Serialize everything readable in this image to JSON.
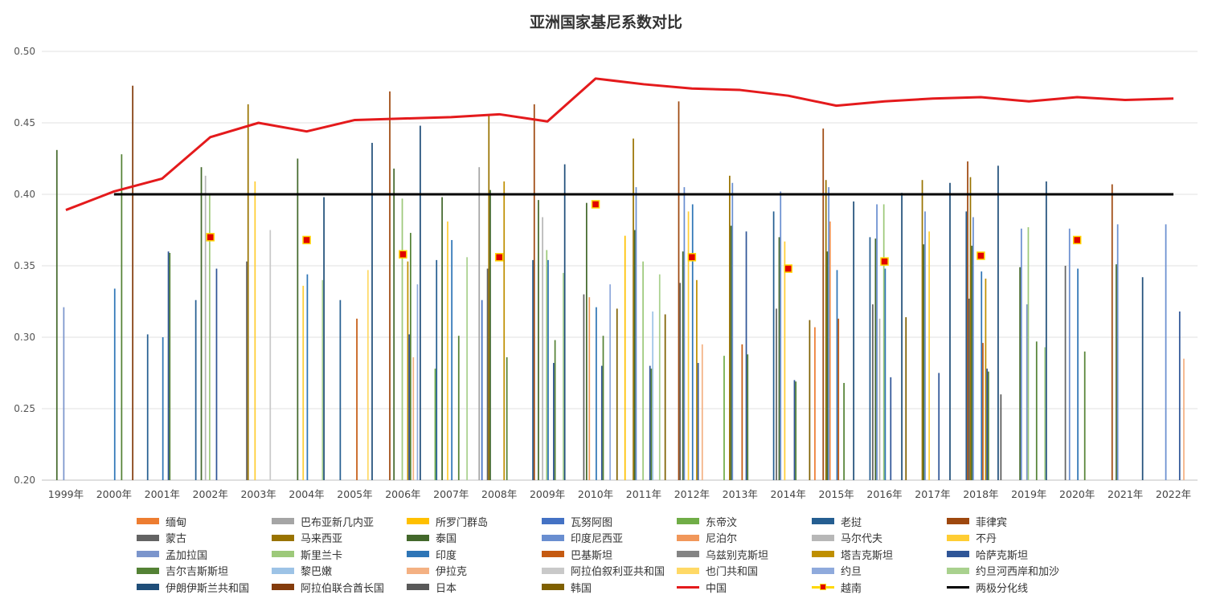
{
  "chart_data": {
    "type": "bar",
    "title": "亚洲国家基尼系数对比",
    "xlabel": "",
    "ylabel": "",
    "ylim": [
      0.2,
      0.5
    ],
    "yticks": [
      "0.20",
      "0.25",
      "0.30",
      "0.35",
      "0.40",
      "0.45",
      "0.50"
    ],
    "grid": true,
    "legend_position": "bottom",
    "categories": [
      "1999年",
      "2000年",
      "2001年",
      "2002年",
      "2003年",
      "2004年",
      "2005年",
      "2006年",
      "2007年",
      "2008年",
      "2009年",
      "2010年",
      "2011年",
      "2012年",
      "2013年",
      "2014年",
      "2015年",
      "2016年",
      "2017年",
      "2018年",
      "2019年",
      "2020年",
      "2021年",
      "2022年"
    ],
    "series": [
      {
        "name": "缅甸",
        "color": "#ed7d31",
        "values": [
          null,
          null,
          null,
          null,
          null,
          null,
          null,
          null,
          null,
          null,
          null,
          null,
          null,
          null,
          null,
          null,
          0.307,
          null,
          null,
          null,
          null,
          null,
          null,
          null
        ]
      },
      {
        "name": "巴布亚新几内亚",
        "color": "#a5a5a5",
        "values": [
          null,
          null,
          null,
          null,
          null,
          null,
          null,
          null,
          null,
          0.419,
          null,
          null,
          null,
          null,
          null,
          null,
          null,
          null,
          null,
          null,
          null,
          null,
          null,
          null
        ]
      },
      {
        "name": "所罗门群岛",
        "color": "#ffc000",
        "values": [
          null,
          null,
          null,
          null,
          null,
          null,
          null,
          null,
          null,
          null,
          null,
          null,
          0.371,
          null,
          null,
          null,
          null,
          null,
          null,
          null,
          null,
          null,
          null,
          null
        ]
      },
      {
        "name": "瓦努阿图",
        "color": "#4472c4",
        "values": [
          null,
          null,
          null,
          null,
          null,
          null,
          null,
          null,
          null,
          0.326,
          null,
          null,
          null,
          null,
          null,
          null,
          null,
          null,
          null,
          null,
          null,
          null,
          null,
          null
        ]
      },
      {
        "name": "东帝汶",
        "color": "#70ad47",
        "values": [
          null,
          null,
          null,
          null,
          null,
          null,
          null,
          null,
          0.278,
          null,
          null,
          null,
          null,
          null,
          0.287,
          null,
          null,
          null,
          null,
          null,
          null,
          null,
          null,
          null
        ]
      },
      {
        "name": "老挝",
        "color": "#255e91",
        "values": [
          null,
          null,
          0.302,
          0.326,
          null,
          null,
          0.326,
          null,
          0.354,
          null,
          0.354,
          null,
          null,
          null,
          null,
          0.388,
          null,
          0.37,
          null,
          0.388,
          null,
          null,
          null,
          null
        ]
      },
      {
        "name": "菲律宾",
        "color": "#9e480e",
        "values": [
          null,
          null,
          null,
          null,
          null,
          null,
          null,
          0.472,
          null,
          null,
          0.463,
          null,
          null,
          0.465,
          null,
          null,
          0.446,
          null,
          null,
          0.423,
          null,
          null,
          0.407,
          null
        ]
      },
      {
        "name": "蒙古",
        "color": "#636363",
        "values": [
          null,
          null,
          null,
          null,
          0.353,
          null,
          null,
          null,
          null,
          0.348,
          null,
          0.33,
          null,
          0.338,
          null,
          0.32,
          null,
          0.323,
          null,
          0.327,
          null,
          0.35,
          null,
          null
        ]
      },
      {
        "name": "马来西亚",
        "color": "#997300",
        "values": [
          null,
          null,
          null,
          null,
          0.463,
          null,
          null,
          null,
          null,
          0.455,
          null,
          null,
          0.439,
          null,
          0.413,
          null,
          0.41,
          null,
          0.41,
          0.412,
          null,
          null,
          null,
          null
        ]
      },
      {
        "name": "泰国",
        "color": "#43682b",
        "values": [
          0.431,
          null,
          null,
          0.419,
          null,
          0.425,
          null,
          0.418,
          0.398,
          0.403,
          0.396,
          0.394,
          0.375,
          0.36,
          0.378,
          0.37,
          0.36,
          0.369,
          0.365,
          0.364,
          0.349,
          null,
          0.351,
          null
        ]
      },
      {
        "name": "印度尼西亚",
        "color": "#698ed0",
        "values": [
          null,
          null,
          null,
          null,
          null,
          null,
          null,
          null,
          null,
          null,
          null,
          null,
          0.405,
          0.405,
          0.408,
          0.402,
          0.405,
          0.393,
          0.388,
          0.384,
          0.376,
          0.376,
          0.379,
          0.379
        ]
      },
      {
        "name": "尼泊尔",
        "color": "#f1975a",
        "values": [
          null,
          null,
          null,
          null,
          null,
          null,
          null,
          null,
          null,
          null,
          null,
          0.328,
          null,
          null,
          null,
          null,
          0.381,
          null,
          null,
          null,
          null,
          null,
          null,
          null
        ]
      },
      {
        "name": "马尔代夫",
        "color": "#b7b7b7",
        "values": [
          null,
          null,
          null,
          0.413,
          null,
          null,
          null,
          null,
          null,
          null,
          0.384,
          null,
          null,
          null,
          null,
          null,
          null,
          0.313,
          null,
          null,
          null,
          null,
          null,
          null
        ]
      },
      {
        "name": "不丹",
        "color": "#ffcd33",
        "values": [
          null,
          null,
          null,
          null,
          0.409,
          0.336,
          null,
          null,
          0.381,
          null,
          null,
          null,
          null,
          0.388,
          null,
          0.367,
          null,
          null,
          0.374,
          null,
          null,
          null,
          null,
          null
        ]
      },
      {
        "name": "孟加拉国",
        "color": "#7b95cc",
        "values": [
          0.321,
          null,
          null,
          null,
          null,
          null,
          null,
          null,
          null,
          null,
          null,
          null,
          null,
          null,
          null,
          null,
          null,
          null,
          null,
          null,
          0.323,
          null,
          null,
          null
        ]
      },
      {
        "name": "斯里兰卡",
        "color": "#9dc97a",
        "values": [
          null,
          null,
          null,
          0.4,
          null,
          null,
          null,
          0.397,
          null,
          null,
          0.361,
          null,
          0.353,
          null,
          null,
          null,
          null,
          0.393,
          null,
          null,
          0.377,
          null,
          null,
          null
        ]
      },
      {
        "name": "印度",
        "color": "#2e75b6",
        "values": [
          null,
          0.334,
          0.3,
          null,
          null,
          0.344,
          null,
          null,
          0.368,
          null,
          0.354,
          0.321,
          null,
          0.393,
          null,
          null,
          0.347,
          0.348,
          null,
          0.346,
          null,
          0.348,
          null,
          null
        ]
      },
      {
        "name": "巴基斯坦",
        "color": "#c55a11",
        "values": [
          null,
          null,
          null,
          null,
          null,
          null,
          0.313,
          null,
          null,
          null,
          null,
          null,
          null,
          null,
          0.295,
          null,
          0.313,
          null,
          null,
          0.296,
          null,
          null,
          null,
          null
        ]
      },
      {
        "name": "乌兹别克斯坦",
        "color": "#848484",
        "values": [
          null,
          null,
          null,
          null,
          null,
          null,
          null,
          null,
          null,
          null,
          null,
          null,
          null,
          null,
          null,
          null,
          null,
          null,
          null,
          null,
          null,
          null,
          null,
          null
        ]
      },
      {
        "name": "塔吉克斯坦",
        "color": "#bf8f00",
        "values": [
          null,
          null,
          null,
          null,
          null,
          null,
          null,
          0.353,
          null,
          0.409,
          null,
          null,
          null,
          0.34,
          null,
          null,
          null,
          null,
          null,
          0.341,
          null,
          null,
          null,
          null
        ]
      },
      {
        "name": "哈萨克斯坦",
        "color": "#2f5597",
        "values": [
          null,
          null,
          0.36,
          0.348,
          null,
          null,
          null,
          0.302,
          null,
          null,
          0.282,
          0.28,
          0.28,
          0.282,
          0.374,
          0.27,
          null,
          0.272,
          0.275,
          0.278,
          null,
          null,
          null,
          0.318
        ]
      },
      {
        "name": "吉尔吉斯斯坦",
        "color": "#548235",
        "values": [
          null,
          0.428,
          0.359,
          null,
          null,
          null,
          null,
          0.373,
          0.301,
          0.286,
          0.298,
          0.301,
          0.278,
          null,
          0.288,
          0.269,
          0.268,
          null,
          null,
          0.276,
          0.297,
          0.29,
          null,
          null
        ]
      },
      {
        "name": "黎巴嫩",
        "color": "#9dc3e6",
        "values": [
          null,
          null,
          null,
          null,
          null,
          null,
          null,
          null,
          null,
          null,
          null,
          null,
          0.318,
          null,
          null,
          null,
          null,
          null,
          null,
          null,
          null,
          null,
          null,
          null
        ]
      },
      {
        "name": "伊拉克",
        "color": "#f4b183",
        "values": [
          null,
          null,
          null,
          null,
          null,
          null,
          null,
          0.286,
          null,
          null,
          null,
          null,
          null,
          0.295,
          null,
          null,
          null,
          null,
          null,
          null,
          null,
          null,
          null,
          0.285
        ]
      },
      {
        "name": "阿拉伯叙利亚共和国",
        "color": "#c9c9c9",
        "values": [
          null,
          null,
          null,
          null,
          0.375,
          null,
          null,
          null,
          null,
          null,
          null,
          null,
          null,
          null,
          null,
          null,
          null,
          null,
          null,
          null,
          null,
          null,
          null,
          null
        ]
      },
      {
        "name": "也门共和国",
        "color": "#ffd966",
        "values": [
          null,
          null,
          null,
          null,
          null,
          null,
          0.347,
          null,
          null,
          null,
          null,
          null,
          null,
          null,
          null,
          null,
          null,
          null,
          null,
          null,
          null,
          null,
          null,
          null
        ]
      },
      {
        "name": "约旦",
        "color": "#8faadc",
        "values": [
          null,
          null,
          null,
          null,
          null,
          null,
          null,
          0.337,
          null,
          null,
          null,
          0.337,
          null,
          null,
          null,
          null,
          null,
          null,
          null,
          null,
          null,
          null,
          null,
          null
        ]
      },
      {
        "name": "约旦河西岸和加沙",
        "color": "#a9d18e",
        "values": [
          null,
          null,
          null,
          null,
          null,
          0.34,
          null,
          null,
          0.356,
          null,
          0.345,
          null,
          0.344,
          null,
          null,
          null,
          null,
          null,
          null,
          null,
          0.293,
          null,
          null,
          null
        ]
      },
      {
        "name": "伊朗伊斯兰共和国",
        "color": "#1f4e79",
        "values": [
          null,
          null,
          null,
          null,
          null,
          0.398,
          0.436,
          0.448,
          null,
          null,
          0.421,
          null,
          null,
          null,
          null,
          null,
          0.395,
          0.401,
          0.408,
          0.42,
          0.409,
          null,
          0.342,
          null
        ]
      },
      {
        "name": "阿拉伯联合酋长国",
        "color": "#843c0c",
        "values": [
          null,
          0.476,
          null,
          null,
          null,
          null,
          null,
          null,
          null,
          null,
          null,
          null,
          null,
          null,
          null,
          null,
          null,
          null,
          null,
          null,
          null,
          null,
          null,
          null
        ]
      },
      {
        "name": "日本",
        "color": "#595959",
        "values": [
          null,
          null,
          null,
          null,
          null,
          null,
          null,
          null,
          null,
          null,
          null,
          null,
          null,
          null,
          null,
          null,
          null,
          null,
          null,
          0.26,
          null,
          null,
          null,
          null
        ]
      },
      {
        "name": "韩国",
        "color": "#7f6000",
        "values": [
          null,
          null,
          null,
          null,
          null,
          null,
          null,
          null,
          null,
          null,
          null,
          0.32,
          0.316,
          null,
          null,
          0.312,
          null,
          0.314,
          null,
          null,
          null,
          null,
          null,
          null
        ]
      },
      {
        "name": "中国",
        "color": "#e41a1c",
        "type": "line",
        "values": [
          0.389,
          0.402,
          0.411,
          0.44,
          0.45,
          0.444,
          0.452,
          0.453,
          0.454,
          0.456,
          0.451,
          0.481,
          0.477,
          0.474,
          0.473,
          0.469,
          0.462,
          0.465,
          0.467,
          0.468,
          0.465,
          0.468,
          0.466,
          0.467
        ]
      },
      {
        "name": "越南",
        "color": "#e00000",
        "type": "marker",
        "values": [
          null,
          null,
          null,
          0.37,
          null,
          0.368,
          null,
          0.358,
          null,
          0.356,
          null,
          0.393,
          null,
          0.356,
          null,
          0.348,
          null,
          0.353,
          null,
          0.357,
          null,
          0.368,
          null,
          null
        ]
      },
      {
        "name": "两极分化线",
        "color": "#000000",
        "type": "line",
        "values": [
          null,
          0.4,
          0.4,
          0.4,
          0.4,
          0.4,
          0.4,
          0.4,
          0.4,
          0.4,
          0.4,
          0.4,
          0.4,
          0.4,
          0.4,
          0.4,
          0.4,
          0.4,
          0.4,
          0.4,
          0.4,
          0.4,
          0.4,
          0.4
        ]
      }
    ]
  }
}
